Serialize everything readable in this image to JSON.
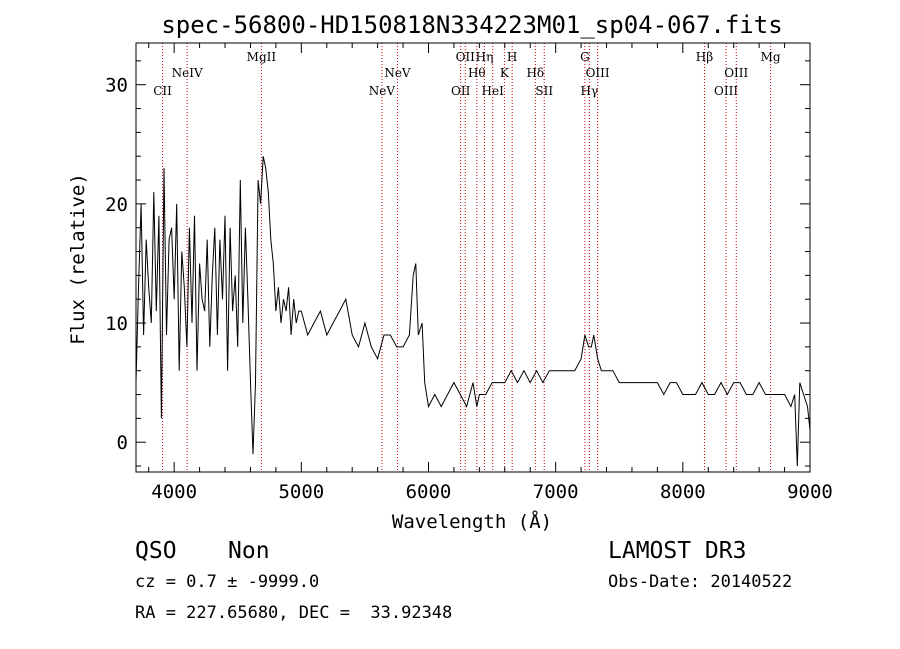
{
  "chart_data": {
    "type": "line",
    "title": "spec-56800-HD150818N334223M01_sp04-067.fits",
    "xlabel": "Wavelength (Å)",
    "ylabel": "Flux (relative)",
    "xlim": [
      3700,
      9000
    ],
    "ylim": [
      -2.5,
      33.5
    ],
    "xticks": [
      4000,
      5000,
      6000,
      7000,
      8000,
      9000
    ],
    "yticks": [
      0,
      10,
      20,
      30
    ],
    "grid": false,
    "line_color": "#000000",
    "marker_color": "#cc0000",
    "series": [
      {
        "x": [
          3700,
          3720,
          3740,
          3760,
          3780,
          3800,
          3820,
          3840,
          3860,
          3880,
          3900,
          3920,
          3940,
          3960,
          3980,
          4000,
          4020,
          4040,
          4060,
          4080,
          4100,
          4120,
          4140,
          4160,
          4180,
          4200,
          4220,
          4240,
          4260,
          4280,
          4300,
          4320,
          4340,
          4360,
          4380,
          4400,
          4420,
          4440,
          4460,
          4480,
          4500,
          4520,
          4540,
          4560,
          4580,
          4600,
          4620,
          4640,
          4660,
          4680,
          4700,
          4720,
          4740,
          4760,
          4780,
          4800,
          4820,
          4840,
          4860,
          4880,
          4900,
          4920,
          4940,
          4960,
          4980,
          5000,
          5050,
          5100,
          5150,
          5200,
          5250,
          5300,
          5350,
          5400,
          5450,
          5500,
          5550,
          5600,
          5650,
          5700,
          5750,
          5800,
          5850,
          5880,
          5900,
          5920,
          5950,
          5970,
          6000,
          6050,
          6100,
          6150,
          6200,
          6250,
          6300,
          6350,
          6380,
          6400,
          6450,
          6500,
          6550,
          6600,
          6650,
          6700,
          6750,
          6800,
          6850,
          6900,
          6950,
          7000,
          7050,
          7100,
          7150,
          7200,
          7230,
          7260,
          7280,
          7300,
          7330,
          7360,
          7400,
          7450,
          7500,
          7550,
          7600,
          7650,
          7700,
          7750,
          7800,
          7850,
          7900,
          7950,
          8000,
          8050,
          8100,
          8150,
          8200,
          8250,
          8300,
          8350,
          8400,
          8450,
          8500,
          8550,
          8600,
          8650,
          8700,
          8750,
          8800,
          8850,
          8880,
          8900,
          8920,
          8950,
          8980,
          9000
        ],
        "y": [
          5,
          13,
          20,
          9,
          17,
          13,
          10,
          21,
          11,
          19,
          2,
          23,
          9,
          17,
          18,
          12,
          20,
          6,
          16,
          13,
          8,
          18,
          10,
          19,
          6,
          15,
          12,
          11,
          17,
          8,
          14,
          18,
          9,
          17,
          12,
          19,
          6,
          18,
          11,
          14,
          8,
          22,
          10,
          18,
          12,
          5,
          -1,
          5,
          22,
          20,
          24,
          23,
          21,
          17,
          15,
          11,
          13,
          10,
          12,
          11,
          13,
          9,
          12,
          10,
          11,
          11,
          9,
          10,
          11,
          9,
          10,
          11,
          12,
          9,
          8,
          10,
          8,
          7,
          9,
          9,
          8,
          8,
          9,
          14,
          15,
          9,
          10,
          5,
          3,
          4,
          3,
          4,
          5,
          4,
          3,
          5,
          3,
          4,
          4,
          5,
          5,
          5,
          6,
          5,
          6,
          5,
          6,
          5,
          6,
          6,
          6,
          6,
          6,
          7,
          9,
          8,
          8,
          9,
          7,
          6,
          6,
          6,
          5,
          5,
          5,
          5,
          5,
          5,
          5,
          4,
          5,
          5,
          4,
          4,
          4,
          5,
          4,
          4,
          5,
          4,
          5,
          5,
          4,
          4,
          5,
          4,
          4,
          4,
          4,
          3,
          4,
          -2,
          5,
          4,
          3,
          1
        ]
      }
    ],
    "line_markers": [
      {
        "x": 3909,
        "label": "CII",
        "row": 2
      },
      {
        "x": 4102,
        "label": "NeIV",
        "row": 1
      },
      {
        "x": 4686,
        "label": "MgII",
        "row": 0
      },
      {
        "x": 5634,
        "label": "NeV",
        "row": 2
      },
      {
        "x": 5756,
        "label": "NeV",
        "row": 1
      },
      {
        "x": 6253,
        "label": "OII",
        "row": 2
      },
      {
        "x": 6289,
        "label": "OII",
        "row": 0
      },
      {
        "x": 6380,
        "label": "Hθ",
        "row": 1
      },
      {
        "x": 6440,
        "label": "Hη",
        "row": 0
      },
      {
        "x": 6505,
        "label": "HeI",
        "row": 2
      },
      {
        "x": 6597,
        "label": "K",
        "row": 1
      },
      {
        "x": 6658,
        "label": "H",
        "row": 0
      },
      {
        "x": 6840,
        "label": "Hδ",
        "row": 1
      },
      {
        "x": 6910,
        "label": "SII",
        "row": 2
      },
      {
        "x": 7230,
        "label": "G",
        "row": 0
      },
      {
        "x": 7265,
        "label": "Hγ",
        "row": 2
      },
      {
        "x": 7330,
        "label": "OIII",
        "row": 1
      },
      {
        "x": 8170,
        "label": "Hβ",
        "row": 0
      },
      {
        "x": 8340,
        "label": "OIII",
        "row": 2
      },
      {
        "x": 8420,
        "label": "OIII",
        "row": 1
      },
      {
        "x": 8690,
        "label": "Mg",
        "row": 0
      }
    ]
  },
  "footer": {
    "class_label": "QSO",
    "subclass_label": "Non",
    "cz_text": "cz = 0.7 ± -9999.0",
    "coords_text": "RA = 227.65680, DEC =  33.92348",
    "survey_label": "LAMOST DR3",
    "obs_date_text": "Obs-Date: 20140522"
  }
}
